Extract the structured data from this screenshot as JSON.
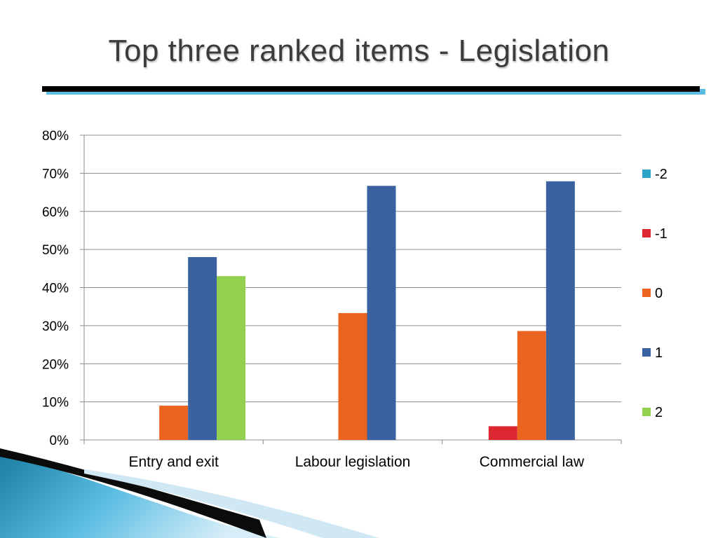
{
  "slide": {
    "title": "Top three ranked items - Legislation"
  },
  "colors": {
    "title_text": "#3c3c3c",
    "rule_black": "#000000",
    "rule_blue": "#5bbde3"
  },
  "chart_data": {
    "type": "bar",
    "title": "",
    "xlabel": "",
    "ylabel": "",
    "ylim": [
      0,
      0.8
    ],
    "y_ticks": [
      0,
      0.1,
      0.2,
      0.3,
      0.4,
      0.5,
      0.6,
      0.7,
      0.8
    ],
    "y_tick_labels": [
      "0%",
      "10%",
      "20%",
      "30%",
      "40%",
      "50%",
      "60%",
      "70%",
      "80%"
    ],
    "grid": true,
    "legend_position": "right",
    "categories": [
      "Entry and exit",
      "Labour legislation",
      "Commercial law"
    ],
    "series": [
      {
        "name": "-2",
        "color": "#2ea3c8",
        "values": [
          0,
          0,
          0
        ]
      },
      {
        "name": "-1",
        "color": "#dc2630",
        "values": [
          0,
          0,
          0.036
        ]
      },
      {
        "name": "0",
        "color": "#ea6420",
        "values": [
          0.09,
          0.333,
          0.286
        ]
      },
      {
        "name": "1",
        "color": "#3a62a0",
        "values": [
          0.48,
          0.667,
          0.679
        ]
      },
      {
        "name": "2",
        "color": "#92d050",
        "values": [
          0.43,
          0,
          0
        ]
      }
    ]
  }
}
